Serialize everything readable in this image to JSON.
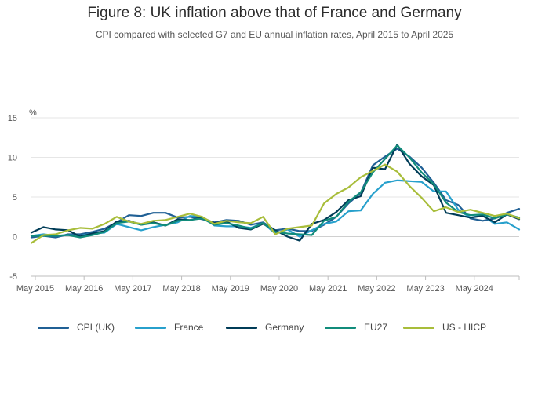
{
  "title": "Figure 8: UK inflation above that of France and Germany",
  "subtitle": "CPI compared with selected G7 and EU annual inflation rates, April 2015 to April 2025",
  "chart_data": {
    "type": "line",
    "title": "Figure 8: UK inflation above that of France and Germany",
    "ylabel": "%",
    "xlabel": "",
    "ylim": [
      -5,
      15
    ],
    "yticks": [
      -5,
      0,
      5,
      10,
      15
    ],
    "yticks_labels": [
      "-5",
      "0",
      "5",
      "10",
      "15"
    ],
    "grid": true,
    "xlim": [
      2015.25,
      2025.25
    ],
    "xticks": [
      2015.33,
      2016.33,
      2017.33,
      2018.33,
      2019.33,
      2020.33,
      2021.33,
      2022.33,
      2023.33,
      2024.33
    ],
    "xtick_labels": [
      "May 2015",
      "May 2016",
      "May 2017",
      "May 2018",
      "May 2019",
      "May 2020",
      "May 2021",
      "May 2022",
      "May 2023",
      "May 2024"
    ],
    "x": [
      2015.25,
      2015.5,
      2015.75,
      2016.0,
      2016.25,
      2016.5,
      2016.75,
      2017.0,
      2017.25,
      2017.5,
      2017.75,
      2018.0,
      2018.25,
      2018.5,
      2018.75,
      2019.0,
      2019.25,
      2019.5,
      2019.75,
      2020.0,
      2020.25,
      2020.5,
      2020.75,
      2021.0,
      2021.25,
      2021.5,
      2021.75,
      2022.0,
      2022.25,
      2022.5,
      2022.75,
      2023.0,
      2023.25,
      2023.5,
      2023.75,
      2024.0,
      2024.25,
      2024.5,
      2024.75,
      2025.0,
      2025.25
    ],
    "legend": [
      "CPI (UK)",
      "France",
      "Germany",
      "EU27",
      "US - HICP"
    ],
    "legend_position": "bottom",
    "series": [
      {
        "name": "CPI (UK)",
        "color": "#206095",
        "values": [
          -0.1,
          0.1,
          -0.1,
          0.3,
          0.3,
          0.6,
          1.0,
          1.8,
          2.7,
          2.6,
          3.0,
          3.0,
          2.4,
          2.5,
          2.2,
          1.8,
          2.1,
          2.0,
          1.5,
          1.8,
          0.8,
          1.0,
          0.7,
          0.7,
          1.5,
          2.5,
          4.2,
          5.5,
          9.0,
          10.1,
          11.1,
          10.1,
          8.7,
          6.8,
          4.6,
          4.0,
          2.3,
          2.0,
          2.3,
          3.0,
          3.5
        ]
      },
      {
        "name": "France",
        "color": "#27a0cc",
        "values": [
          0.1,
          0.3,
          0.1,
          0.2,
          0.1,
          0.4,
          0.5,
          1.6,
          1.2,
          0.8,
          1.2,
          1.5,
          1.8,
          2.6,
          2.5,
          1.4,
          1.3,
          1.3,
          1.1,
          1.7,
          0.4,
          0.9,
          0.0,
          0.8,
          1.6,
          1.9,
          3.2,
          3.3,
          5.4,
          6.8,
          7.1,
          7.0,
          6.9,
          5.7,
          5.7,
          3.4,
          2.4,
          2.7,
          1.6,
          1.8,
          0.9
        ]
      },
      {
        "name": "Germany",
        "color": "#003c57",
        "values": [
          0.5,
          1.2,
          0.9,
          0.8,
          0.0,
          0.4,
          0.7,
          1.9,
          2.0,
          1.5,
          1.8,
          1.4,
          2.2,
          2.1,
          2.4,
          1.7,
          1.9,
          1.1,
          0.9,
          1.6,
          0.8,
          0.0,
          -0.5,
          1.6,
          2.1,
          3.1,
          4.6,
          5.1,
          8.7,
          8.5,
          11.6,
          9.2,
          7.6,
          6.5,
          3.0,
          2.7,
          2.4,
          2.6,
          1.8,
          2.8,
          2.2
        ]
      },
      {
        "name": "EU27",
        "color": "#118c7b",
        "values": [
          0.1,
          0.1,
          0.1,
          0.2,
          -0.1,
          0.2,
          0.6,
          1.7,
          1.9,
          1.5,
          1.7,
          1.4,
          2.0,
          2.1,
          2.3,
          1.5,
          1.7,
          1.4,
          1.0,
          1.7,
          0.6,
          0.4,
          0.3,
          0.2,
          2.0,
          2.5,
          4.4,
          5.6,
          8.1,
          9.8,
          11.5,
          10.0,
          8.1,
          6.6,
          4.3,
          3.1,
          2.7,
          2.8,
          2.3,
          2.8,
          2.4
        ]
      },
      {
        "name": "US - HICP",
        "color": "#a8bd3a",
        "values": [
          -0.8,
          0.2,
          0.3,
          0.8,
          1.1,
          1.0,
          1.6,
          2.5,
          1.9,
          1.6,
          2.0,
          2.1,
          2.5,
          2.9,
          2.5,
          1.6,
          2.0,
          1.8,
          1.7,
          2.5,
          0.3,
          1.0,
          1.2,
          1.4,
          4.2,
          5.4,
          6.2,
          7.5,
          8.3,
          9.1,
          8.2,
          6.4,
          4.9,
          3.2,
          3.7,
          3.1,
          3.4,
          3.0,
          2.6,
          2.9,
          2.3
        ]
      }
    ]
  }
}
